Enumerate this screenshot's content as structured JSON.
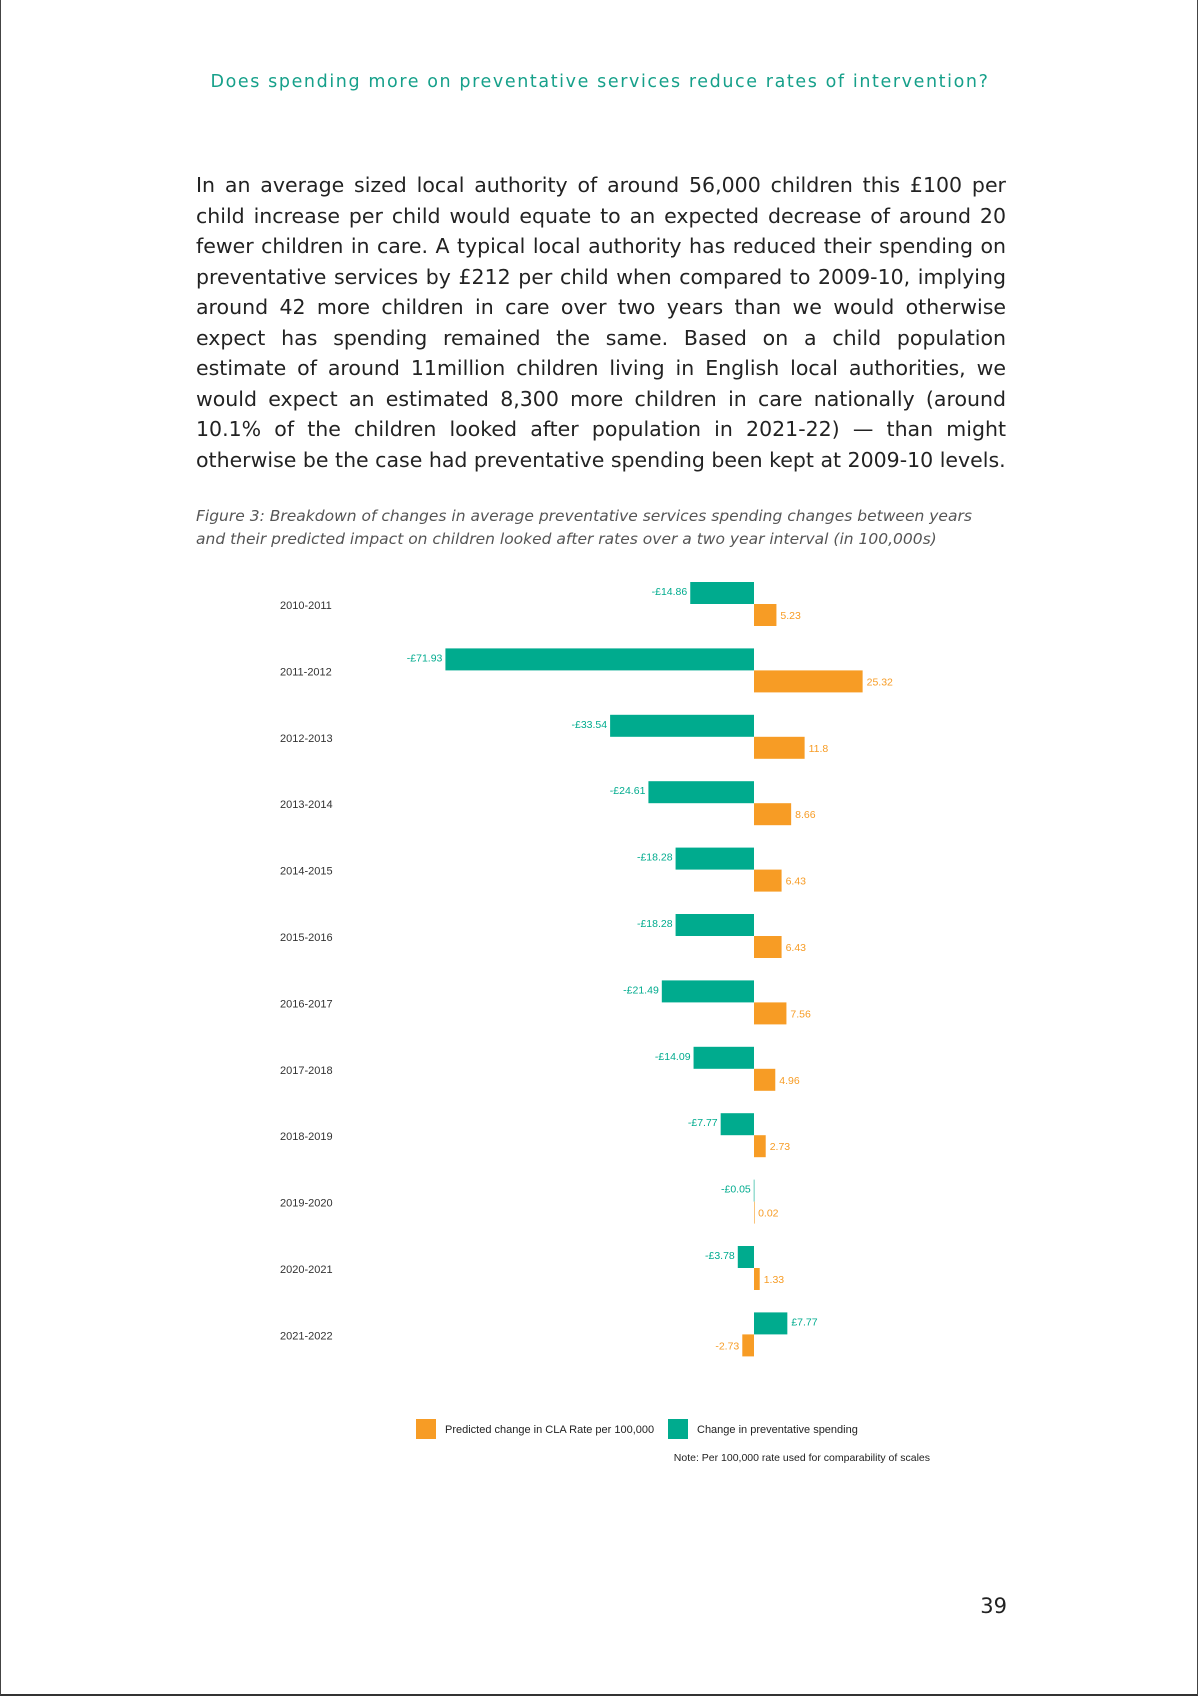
{
  "header": {
    "running_title": "Does spending more on preventative services reduce rates of intervention?"
  },
  "body": {
    "paragraph": "In an average sized local authority of around 56,000 children this £100 per child increase per child would equate to an expected decrease of around 20 fewer children in care. A typical local authority has reduced their spending on preventative services by £212 per child when compared to 2009-10, implying around 42 more children in care over two years than we would otherwise expect has spending remained the same. Based on a child population estimate of around 11million children living in English local authorities, we would expect an estimated 8,300 more children in care nationally (around 10.1% of the children looked after population in 2021-22) — than might otherwise be the case had preventative spending been kept at 2009-10 levels."
  },
  "figure": {
    "caption": "Figure 3: Breakdown of changes in average preventative services spending changes between years and their predicted impact on children looked after rates over a two year interval (in 100,000s)"
  },
  "chart_data": {
    "type": "bar",
    "orientation": "horizontal",
    "categories": [
      "2010-2011",
      "2011-2012",
      "2012-2013",
      "2013-2014",
      "2014-2015",
      "2015-2016",
      "2016-2017",
      "2017-2018",
      "2018-2019",
      "2019-2020",
      "2020-2021",
      "2021-2022"
    ],
    "series": [
      {
        "name": "Change in preventative spending",
        "color": "#00ab8e",
        "values": [
          -14.86,
          -71.93,
          -33.54,
          -24.61,
          -18.28,
          -18.28,
          -21.49,
          -14.09,
          -7.77,
          -0.05,
          -3.78,
          7.77
        ],
        "labels": [
          "-£14.86",
          "-£71.93",
          "-£33.54",
          "-£24.61",
          "-£18.28",
          "-£18.28",
          "-£21.49",
          "-£14.09",
          "-£7.77",
          "-£0.05",
          "-£3.78",
          "£7.77"
        ]
      },
      {
        "name": "Predicted change in CLA Rate per 100,000",
        "color": "#f79c25",
        "values": [
          5.23,
          25.32,
          11.8,
          8.66,
          6.43,
          6.43,
          7.56,
          4.96,
          2.73,
          0.02,
          1.33,
          -2.73
        ],
        "labels": [
          "5.23",
          "25.32",
          "11.8",
          "8.66",
          "6.43",
          "6.43",
          "7.56",
          "4.96",
          "2.73",
          "0.02",
          "1.33",
          "-2.73"
        ]
      }
    ],
    "legend": {
      "position": "bottom",
      "order": [
        1,
        0
      ]
    },
    "note": "Note: Per 100,000 rate used for comparability of scales",
    "grid": false,
    "axes_visible": false
  },
  "footer": {
    "page_number": "39"
  }
}
